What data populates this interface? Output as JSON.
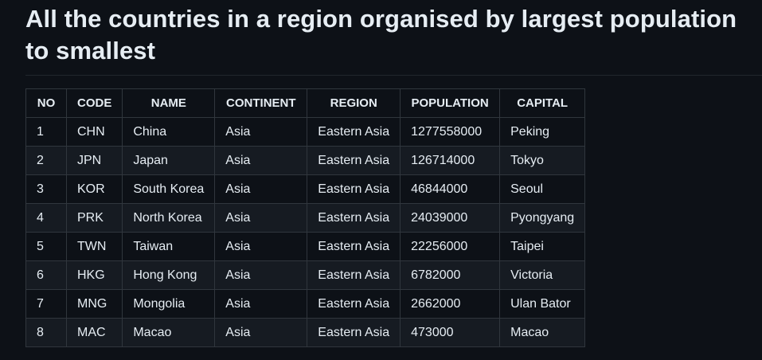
{
  "heading": "All the countries in a region organised by largest population to smallest",
  "table": {
    "headers": [
      "NO",
      "CODE",
      "NAME",
      "CONTINENT",
      "REGION",
      "POPULATION",
      "CAPITAL"
    ],
    "rows": [
      [
        "1",
        "CHN",
        "China",
        "Asia",
        "Eastern Asia",
        "1277558000",
        "Peking"
      ],
      [
        "2",
        "JPN",
        "Japan",
        "Asia",
        "Eastern Asia",
        "126714000",
        "Tokyo"
      ],
      [
        "3",
        "KOR",
        "South Korea",
        "Asia",
        "Eastern Asia",
        "46844000",
        "Seoul"
      ],
      [
        "4",
        "PRK",
        "North Korea",
        "Asia",
        "Eastern Asia",
        "24039000",
        "Pyongyang"
      ],
      [
        "5",
        "TWN",
        "Taiwan",
        "Asia",
        "Eastern Asia",
        "22256000",
        "Taipei"
      ],
      [
        "6",
        "HKG",
        "Hong Kong",
        "Asia",
        "Eastern Asia",
        "6782000",
        "Victoria"
      ],
      [
        "7",
        "MNG",
        "Mongolia",
        "Asia",
        "Eastern Asia",
        "2662000",
        "Ulan Bator"
      ],
      [
        "8",
        "MAC",
        "Macao",
        "Asia",
        "Eastern Asia",
        "473000",
        "Macao"
      ]
    ]
  }
}
